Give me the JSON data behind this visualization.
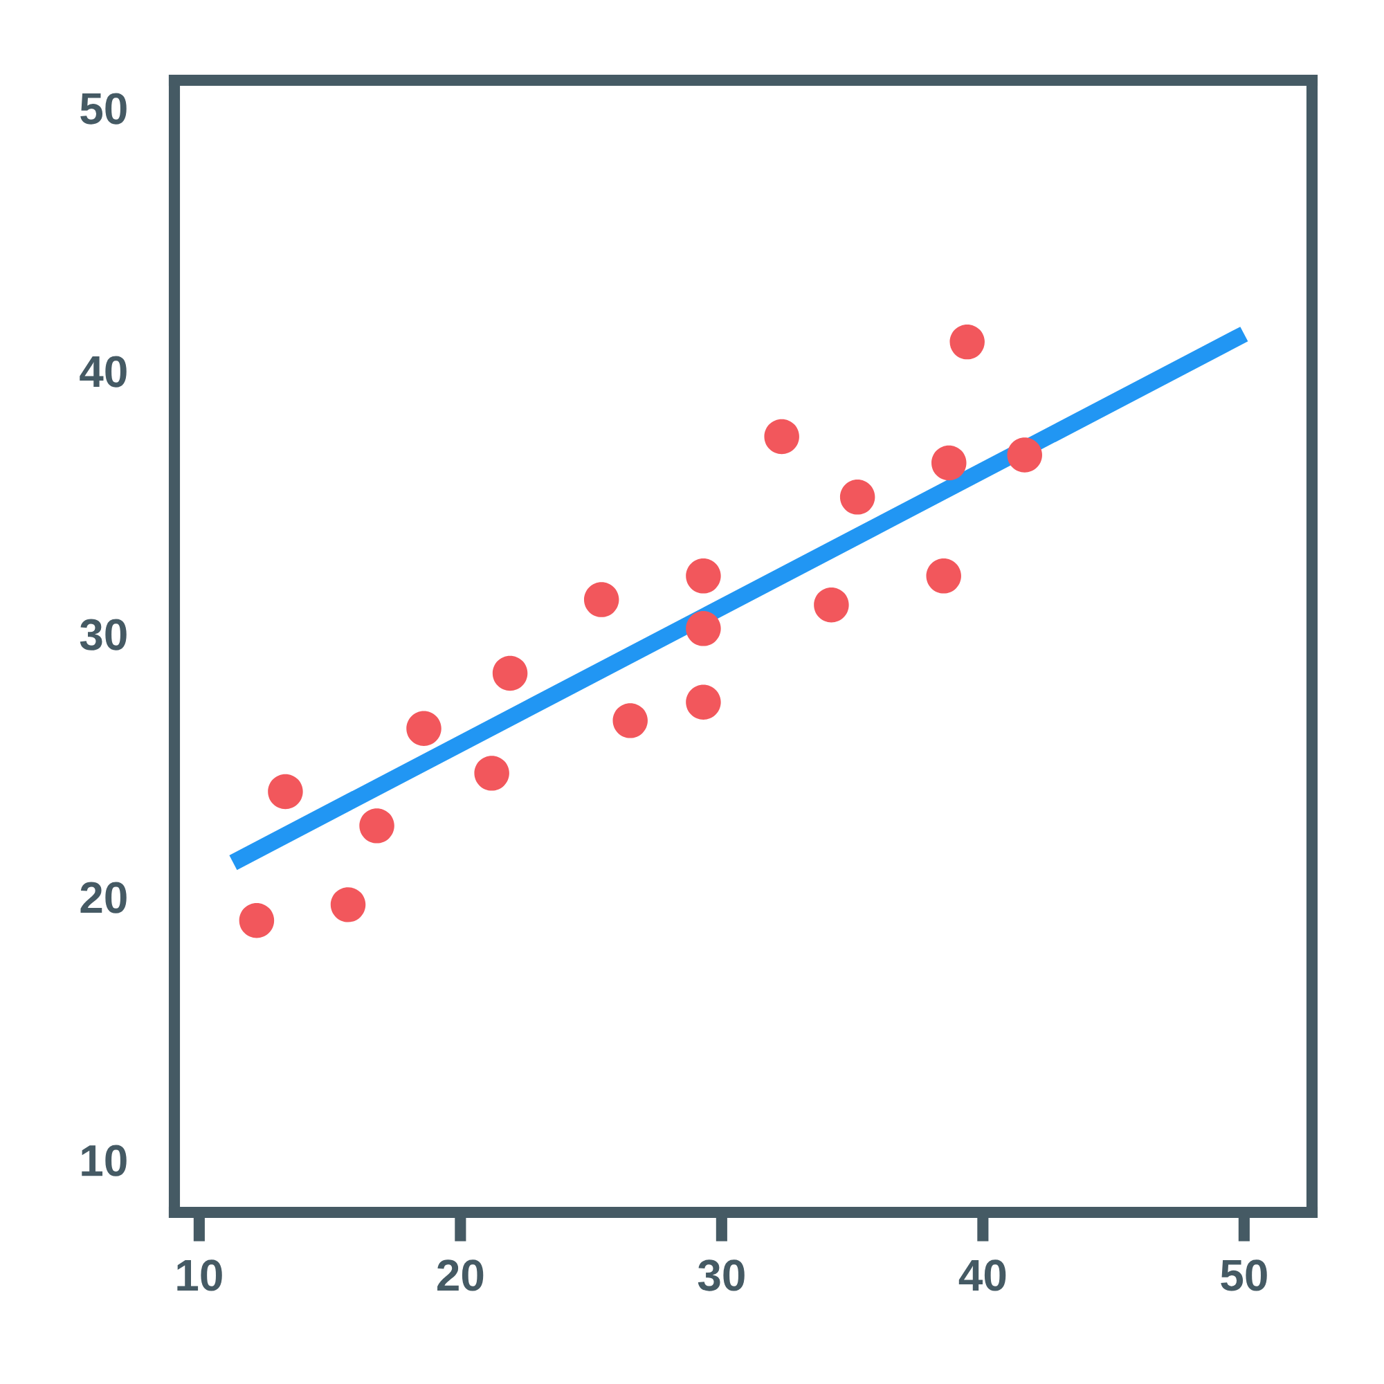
{
  "chart_data": {
    "type": "scatter",
    "xlim": [
      9.05,
      52.6
    ],
    "ylim": [
      8,
      51.05
    ],
    "xticks": [
      10,
      20,
      30,
      40,
      50
    ],
    "yticks": [
      10,
      20,
      30,
      40,
      50
    ],
    "series": [
      {
        "color": "#f2575c",
        "marker": "circle",
        "x": [
          12.2,
          13.3,
          15.7,
          16.8,
          18.6,
          21.2,
          21.9,
          25.4,
          26.5,
          29.3,
          29.3,
          29.3,
          32.3,
          34.2,
          35.2,
          38.5,
          38.7,
          39.4,
          41.6
        ],
        "values": [
          19.1,
          24.0,
          19.7,
          22.7,
          26.4,
          24.7,
          28.5,
          31.3,
          26.7,
          32.2,
          30.2,
          27.4,
          37.5,
          31.1,
          35.2,
          32.2,
          36.5,
          41.1,
          36.8
        ]
      },
      {
        "type": "line",
        "color": "#2196f3",
        "line_style": "solid",
        "x": [
          11.3,
          50.0
        ],
        "values": [
          21.3,
          41.4
        ]
      }
    ]
  }
}
